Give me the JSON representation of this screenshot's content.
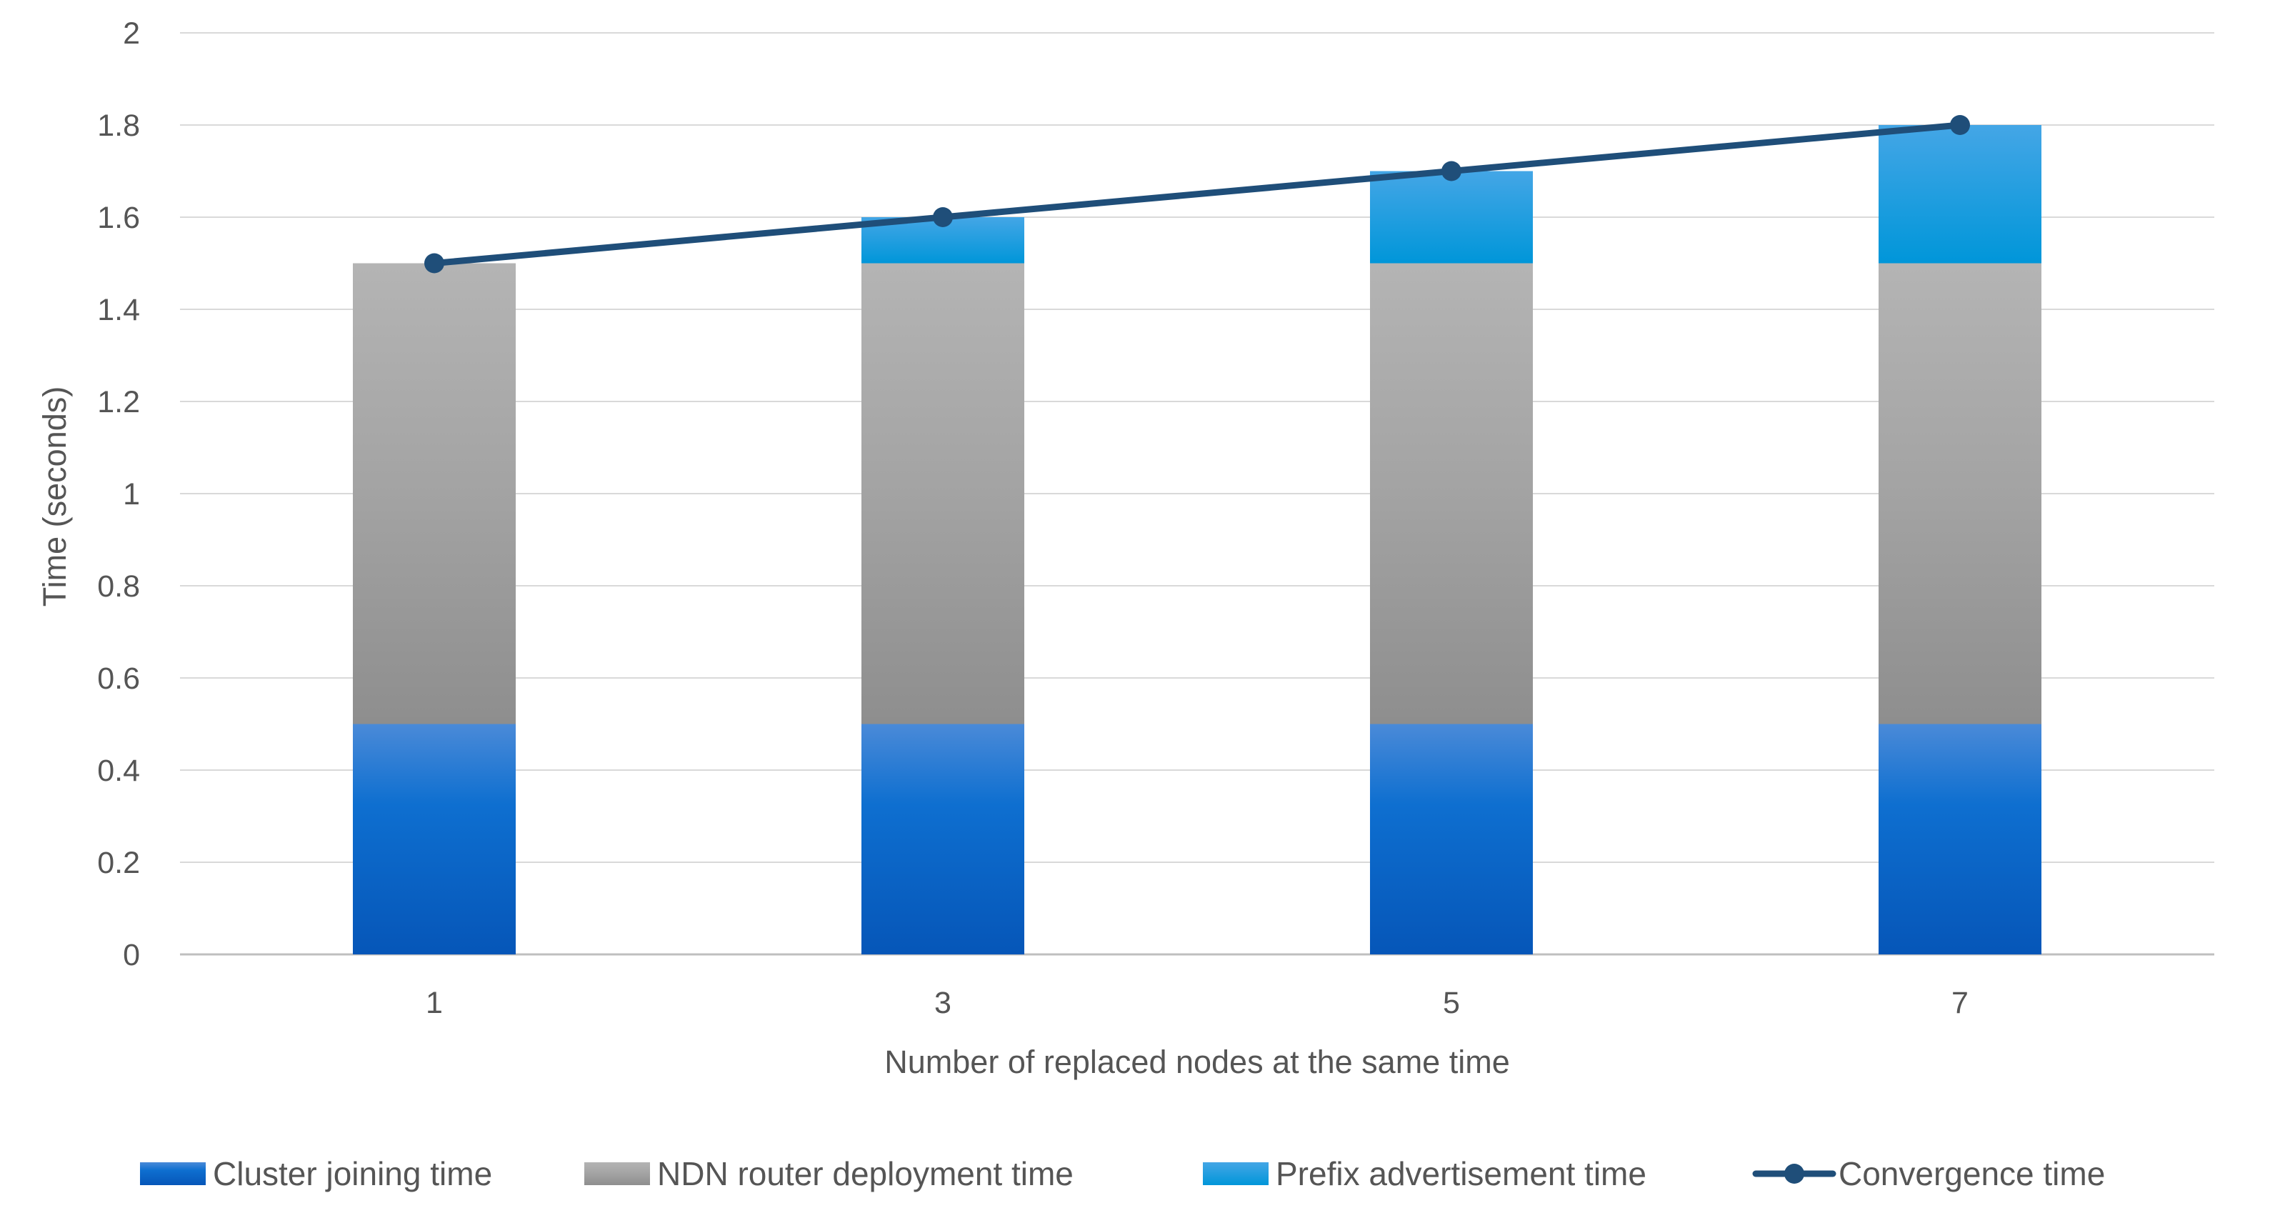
{
  "chart_data": {
    "type": "bar",
    "stacked": true,
    "categories": [
      "1",
      "3",
      "5",
      "7"
    ],
    "series": [
      {
        "name": "Cluster joining time",
        "type": "bar",
        "color": "#1a73d0",
        "values": [
          0.5,
          0.5,
          0.5,
          0.5
        ]
      },
      {
        "name": "NDN router deployment time",
        "type": "bar",
        "color": "#a5a5a5",
        "values": [
          1.0,
          1.0,
          1.0,
          1.0
        ]
      },
      {
        "name": "Prefix advertisement time",
        "type": "bar",
        "color": "#1a9ee0",
        "values": [
          0.0,
          0.1,
          0.2,
          0.3
        ]
      },
      {
        "name": "Convergence time",
        "type": "line",
        "color": "#1f4e79",
        "values": [
          1.5,
          1.6,
          1.7,
          1.8
        ]
      }
    ],
    "title": "",
    "xlabel": "Number of replaced nodes at the same time",
    "ylabel": "Time (seconds)",
    "ylim": [
      0,
      2
    ],
    "yticks": [
      "0",
      "0.2",
      "0.4",
      "0.6",
      "0.8",
      "1",
      "1.2",
      "1.4",
      "1.6",
      "1.8",
      "2"
    ],
    "grid": true,
    "legend_position": "bottom"
  }
}
